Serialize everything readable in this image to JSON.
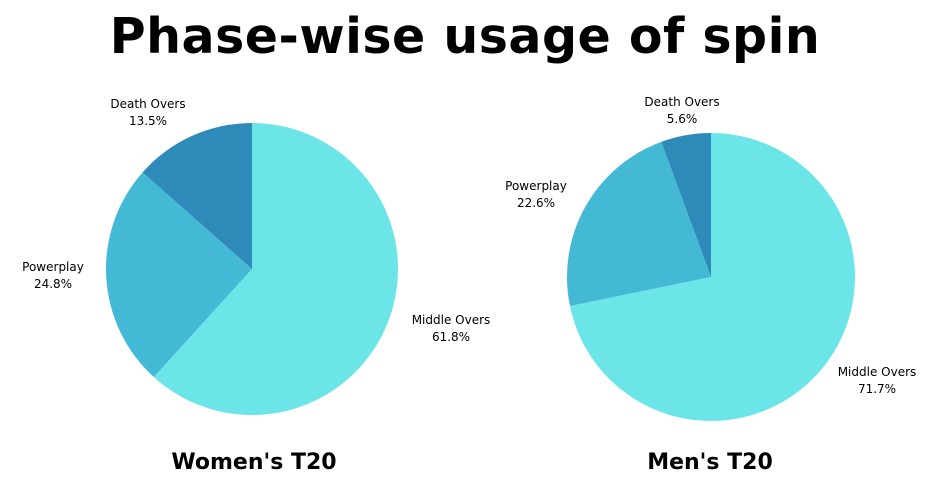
{
  "title": "Phase-wise usage of spin",
  "chart_data": [
    {
      "type": "pie",
      "title": "Women's T20",
      "categories": [
        "Middle Overs",
        "Powerplay",
        "Death Overs"
      ],
      "values": [
        61.8,
        24.8,
        13.5
      ],
      "value_labels": [
        "61.8%",
        "24.8%",
        "13.5%"
      ],
      "colors": [
        "#6be5e8",
        "#44b9d6",
        "#2e8ab8"
      ],
      "legend": "none"
    },
    {
      "type": "pie",
      "title": "Men's T20",
      "categories": [
        "Middle Overs",
        "Powerplay",
        "Death Overs"
      ],
      "values": [
        71.7,
        22.6,
        5.6
      ],
      "value_labels": [
        "71.7%",
        "22.6%",
        "5.6%"
      ],
      "colors": [
        "#6be5e8",
        "#44b9d6",
        "#2e8ab8"
      ],
      "legend": "none"
    }
  ]
}
